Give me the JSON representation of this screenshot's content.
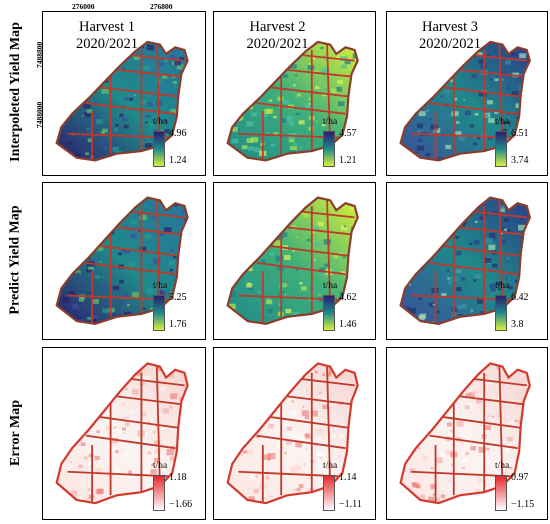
{
  "row_labels": [
    "Interpoleted Yield Map",
    "Predict Yield Map",
    "Error Map"
  ],
  "coords": {
    "x1": "276000",
    "x2": "276800",
    "y1": "7488800",
    "y2": "7488000"
  },
  "columns": [
    {
      "harvest": "Harvest 1",
      "season": "2020/2021"
    },
    {
      "harvest": "Harvest 2",
      "season": "2020/2021"
    },
    {
      "harvest": "Harvest 3",
      "season": "2020/2021"
    }
  ],
  "unit": "t/ha",
  "legends": {
    "interpolated": [
      {
        "max": "4.96",
        "min": "1.24"
      },
      {
        "max": "4.57",
        "min": "1.21"
      },
      {
        "max": "6.51",
        "min": "3.74"
      }
    ],
    "predicted": [
      {
        "max": "5.25",
        "min": "1.76"
      },
      {
        "max": "4.62",
        "min": "1.46"
      },
      {
        "max": "6.42",
        "min": "3.8"
      }
    ],
    "error": [
      {
        "max": "1.18",
        "min": "−1.66"
      },
      {
        "max": "1.14",
        "min": "−1.11"
      },
      {
        "max": "0.97",
        "min": "−1.15"
      }
    ]
  },
  "colors": {
    "yield_high": "#2d1e6e",
    "yield_mid": "#1f8a8a",
    "yield_low": "#d8f03a",
    "error_high": "#e8262b",
    "error_low": "#ffffff",
    "road": "#c0392b",
    "panel_border": "#000000"
  }
}
